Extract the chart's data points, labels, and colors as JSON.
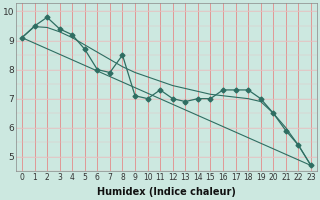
{
  "title": "",
  "xlabel": "Humidex (Indice chaleur)",
  "xlim": [
    -0.5,
    23.5
  ],
  "ylim": [
    4.5,
    10.3
  ],
  "bg_color": "#cce8e0",
  "line_color": "#2e6e62",
  "grid_color_v": "#e87878",
  "grid_color_h": "#e8c0c0",
  "xticks": [
    0,
    1,
    2,
    3,
    4,
    5,
    6,
    7,
    8,
    9,
    10,
    11,
    12,
    13,
    14,
    15,
    16,
    17,
    18,
    19,
    20,
    21,
    22,
    23
  ],
  "yticks": [
    5,
    6,
    7,
    8,
    9,
    10
  ],
  "series": [
    {
      "x": [
        0,
        1,
        2,
        3,
        4,
        5,
        6,
        7,
        8,
        9,
        10,
        11,
        12,
        13,
        14,
        15,
        16,
        17,
        18,
        19,
        20,
        21,
        22,
        23
      ],
      "y": [
        9.1,
        9.5,
        9.8,
        9.4,
        9.2,
        8.7,
        8.0,
        7.9,
        8.5,
        7.1,
        7.0,
        7.3,
        7.0,
        6.9,
        7.0,
        7.0,
        7.3,
        7.3,
        7.3,
        7.0,
        6.5,
        5.9,
        5.4,
        4.7
      ],
      "has_markers": true,
      "marker": "D",
      "markersize": 2.5
    },
    {
      "x": [
        0,
        1,
        2,
        3,
        4,
        5,
        6,
        7,
        8,
        9,
        10,
        11,
        12,
        13,
        14,
        15,
        16,
        17,
        18,
        19,
        20,
        21,
        22,
        23
      ],
      "y": [
        9.1,
        9.48,
        9.45,
        9.3,
        9.1,
        8.85,
        8.6,
        8.35,
        8.1,
        7.9,
        7.75,
        7.6,
        7.45,
        7.35,
        7.25,
        7.15,
        7.1,
        7.05,
        7.0,
        6.9,
        6.5,
        6.0,
        5.4,
        4.7
      ],
      "has_markers": false,
      "marker": null,
      "markersize": 0
    },
    {
      "x": [
        0,
        23
      ],
      "y": [
        9.1,
        4.7
      ],
      "has_markers": false,
      "marker": null,
      "markersize": 0
    }
  ],
  "font_size_xlabel": 7,
  "font_size_ytick": 6.5,
  "font_size_xtick": 5.5
}
